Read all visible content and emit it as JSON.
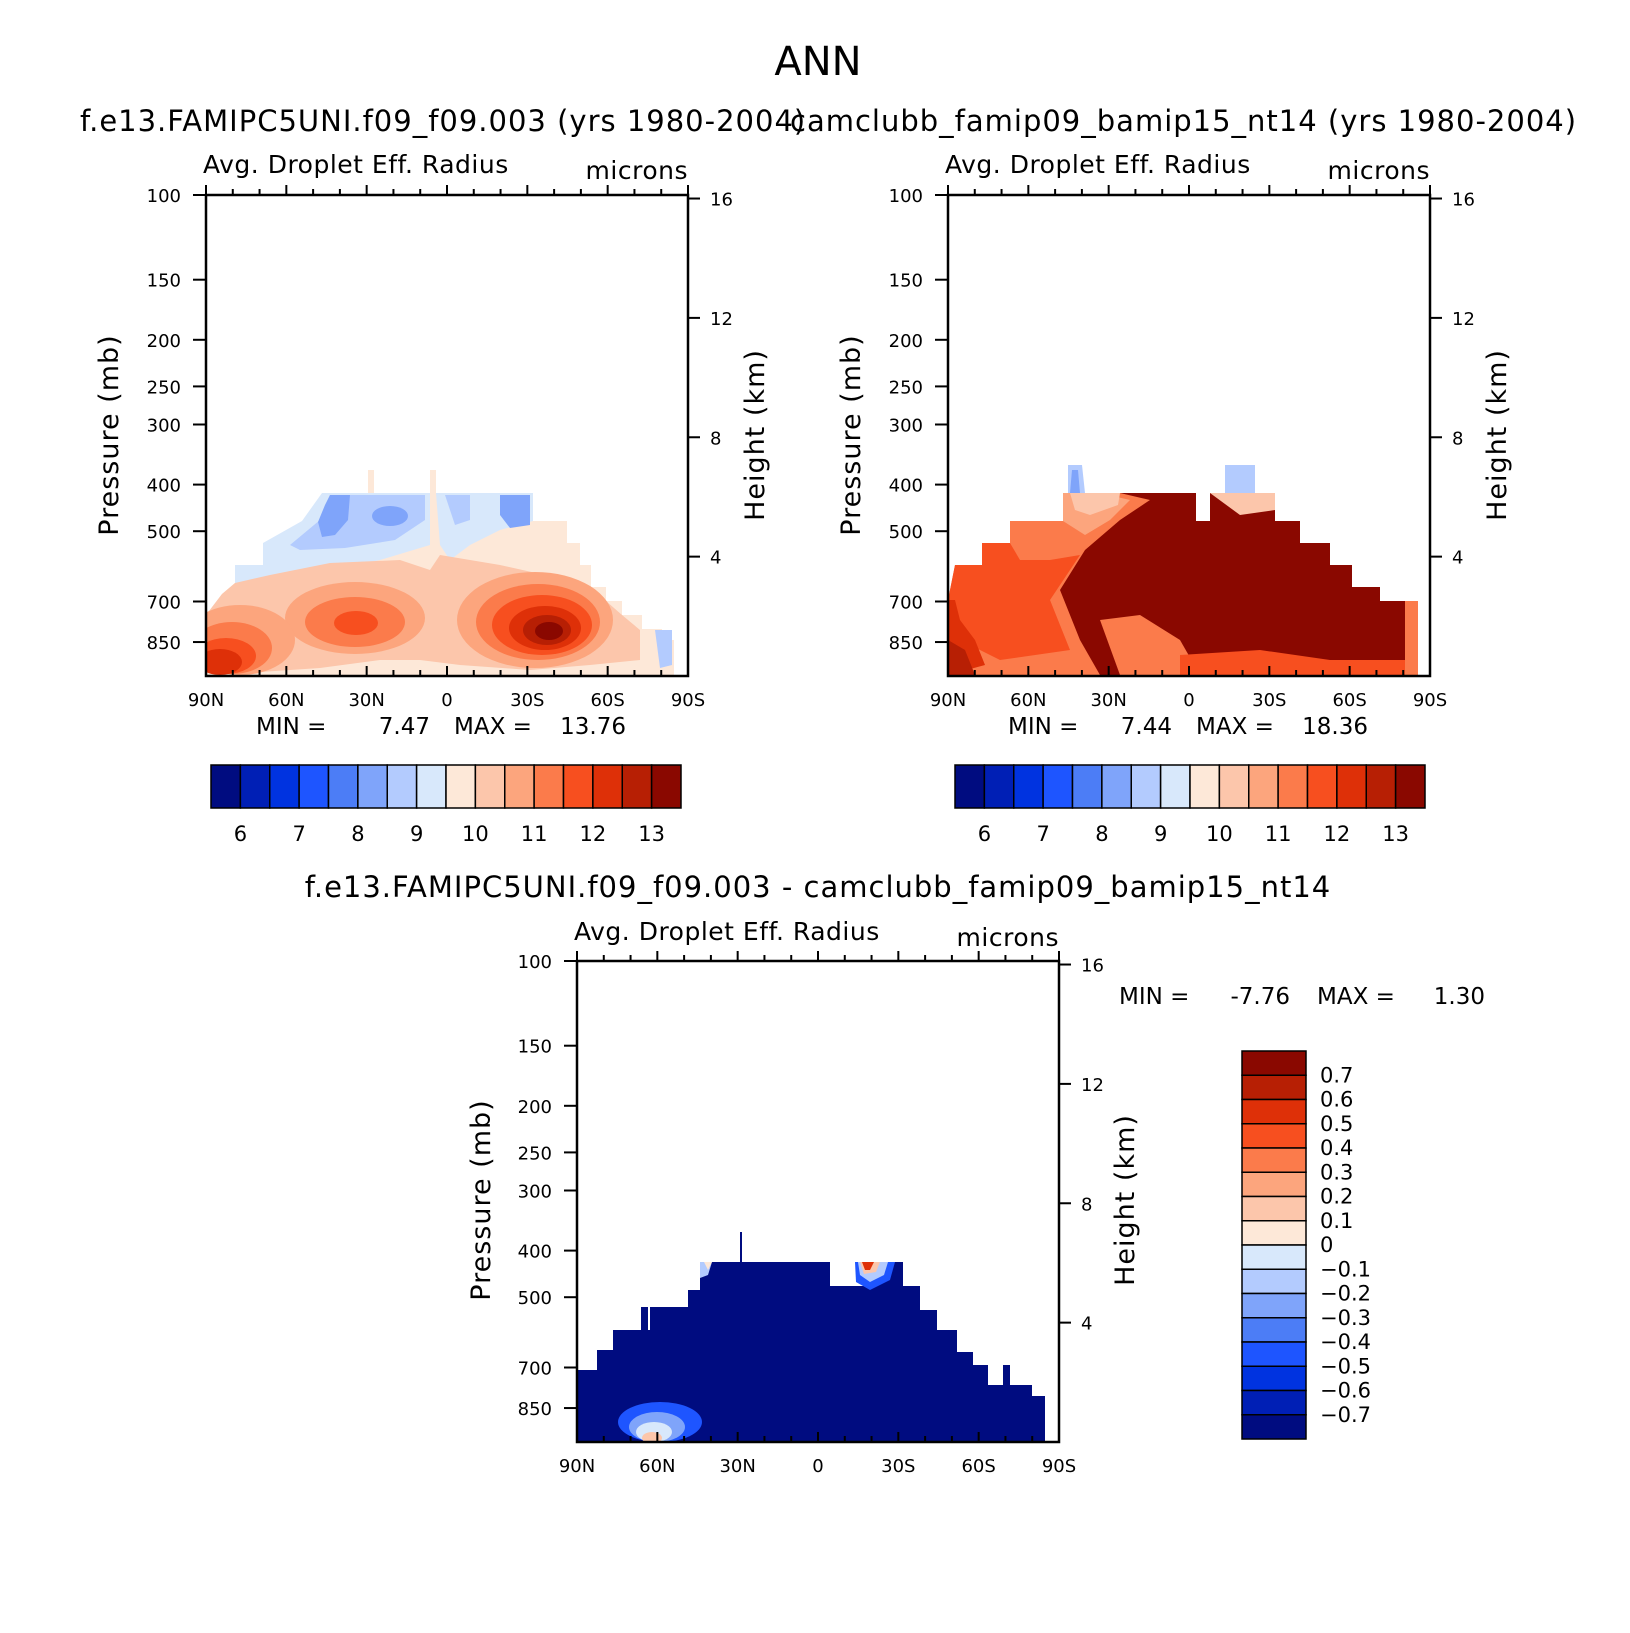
{
  "figure_title": "ANN",
  "chart_data": [
    {
      "type": "heatmap",
      "panel": "left",
      "case": "f.e13.FAMIPC5UNI.f09_f09.003 (yrs 1980-2004)",
      "title": "Avg. Droplet Eff. Radius",
      "units": "microns",
      "xlabel": "",
      "ylabel": "Pressure (mb)",
      "ylabel_right": "Height (km)",
      "x_ticks": [
        "90N",
        "60N",
        "30N",
        "0",
        "30S",
        "60S",
        "90S"
      ],
      "y_ticks": [
        100,
        150,
        200,
        250,
        300,
        400,
        500,
        700,
        850
      ],
      "y_right_ticks": [
        16,
        12,
        8,
        4
      ],
      "ylim": [
        1000,
        100
      ],
      "y_scale": "log",
      "min_label": "MIN =",
      "min_value": "7.47",
      "max_label": "MAX =",
      "max_value": "13.76",
      "colorbar": {
        "orientation": "horizontal",
        "labels": [
          "6",
          "7",
          "8",
          "9",
          "10",
          "11",
          "12",
          "13"
        ]
      }
    },
    {
      "type": "heatmap",
      "panel": "right",
      "case": "camclubb_famip09_bamip15_nt14 (yrs 1980-2004)",
      "title": "Avg. Droplet Eff. Radius",
      "units": "microns",
      "xlabel": "",
      "ylabel": "Pressure (mb)",
      "ylabel_right": "Height (km)",
      "x_ticks": [
        "90N",
        "60N",
        "30N",
        "0",
        "30S",
        "60S",
        "90S"
      ],
      "y_ticks": [
        100,
        150,
        200,
        250,
        300,
        400,
        500,
        700,
        850
      ],
      "y_right_ticks": [
        16,
        12,
        8,
        4
      ],
      "ylim": [
        1000,
        100
      ],
      "y_scale": "log",
      "min_label": "MIN =",
      "min_value": "7.44",
      "max_label": "MAX =",
      "max_value": "18.36",
      "colorbar": {
        "orientation": "horizontal",
        "labels": [
          "6",
          "7",
          "8",
          "9",
          "10",
          "11",
          "12",
          "13"
        ]
      }
    },
    {
      "type": "heatmap",
      "panel": "difference",
      "case": "f.e13.FAMIPC5UNI.f09_f09.003 - camclubb_famip09_bamip15_nt14",
      "title": "Avg. Droplet Eff. Radius",
      "units": "microns",
      "xlabel": "",
      "ylabel": "Pressure (mb)",
      "ylabel_right": "Height (km)",
      "x_ticks": [
        "90N",
        "60N",
        "30N",
        "0",
        "30S",
        "60S",
        "90S"
      ],
      "y_ticks": [
        100,
        150,
        200,
        250,
        300,
        400,
        500,
        700,
        850
      ],
      "y_right_ticks": [
        16,
        12,
        8,
        4
      ],
      "ylim": [
        1000,
        100
      ],
      "y_scale": "log",
      "min_label": "MIN =",
      "min_value": "-7.76",
      "max_label": "MAX =",
      "max_value": "1.30",
      "colorbar": {
        "orientation": "vertical",
        "labels": [
          "0.7",
          "0.6",
          "0.5",
          "0.4",
          "0.3",
          "0.2",
          "0.1",
          "0",
          "-0.1",
          "-0.2",
          "-0.3",
          "-0.4",
          "-0.5",
          "-0.6",
          "-0.7"
        ]
      }
    }
  ],
  "colors": {
    "abs_palette": [
      "#000c80",
      "#001fb5",
      "#0033e0",
      "#1e55ff",
      "#4c7df6",
      "#7fa4fa",
      "#b3cbfe",
      "#d8e8fb",
      "#fde8d8",
      "#fcc6ab",
      "#fca57d",
      "#fb7b4b",
      "#f74f1f",
      "#de3008",
      "#b71f04",
      "#8a0800"
    ],
    "diff_palette": [
      "#8a0800",
      "#b71f04",
      "#de3008",
      "#f74f1f",
      "#fb7b4b",
      "#fca57d",
      "#fcc6ab",
      "#fde8d8",
      "#d8e8fb",
      "#b3cbfe",
      "#7fa4fa",
      "#4c7df6",
      "#1e55ff",
      "#0033e0",
      "#001fb5",
      "#000c80"
    ]
  }
}
